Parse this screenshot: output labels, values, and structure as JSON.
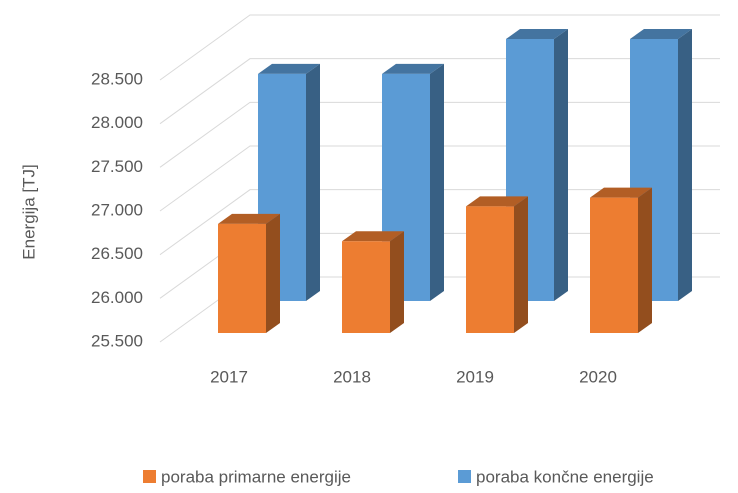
{
  "chart_data": {
    "type": "bar3d",
    "ylabel": "Energija [TJ]",
    "categories": [
      "2017",
      "2018",
      "2019",
      "2020"
    ],
    "series": [
      {
        "name": "poraba primarne energije",
        "color": "#ed7d31",
        "values": [
          26750,
          26550,
          26950,
          27050
        ]
      },
      {
        "name": "poraba končne energije",
        "color": "#5b9bd5",
        "values": [
          28100,
          28100,
          28500,
          28500
        ]
      }
    ],
    "ylim": [
      25500,
      28500
    ],
    "yticks": [
      {
        "value": 25500,
        "label": "25.500"
      },
      {
        "value": 26000,
        "label": "26.000"
      },
      {
        "value": 26500,
        "label": "26.500"
      },
      {
        "value": 27000,
        "label": "27.000"
      },
      {
        "value": 27500,
        "label": "27.500"
      },
      {
        "value": 28000,
        "label": "28.000"
      },
      {
        "value": 28500,
        "label": "28.500"
      }
    ],
    "grid": true
  }
}
